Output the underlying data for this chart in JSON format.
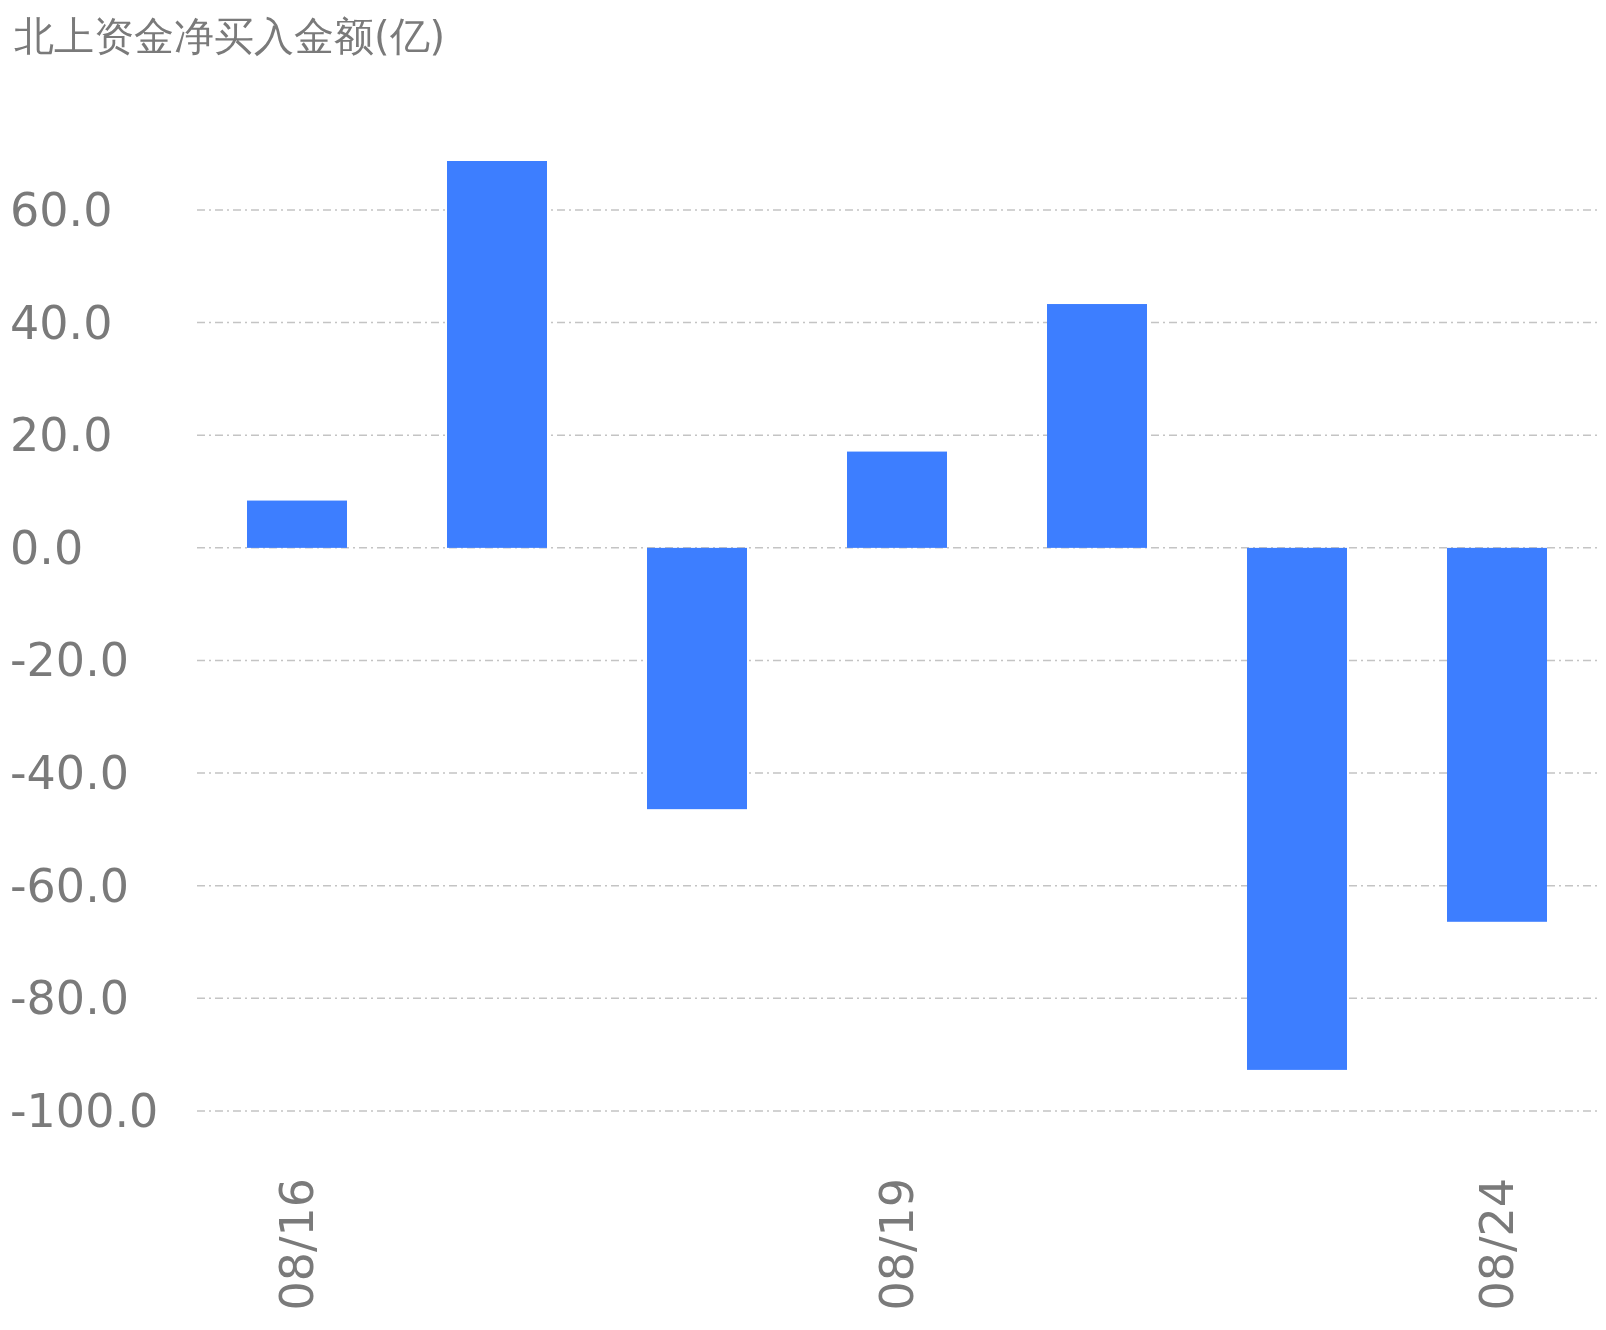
{
  "chart_data": {
    "type": "bar",
    "title": "北上资金净买入金额(亿)",
    "categories": [
      "08/16",
      null,
      null,
      "08/19",
      null,
      null,
      "08/24"
    ],
    "values": [
      8.4,
      68.7,
      -46.4,
      17.1,
      43.3,
      -92.7,
      -66.4
    ],
    "color": "#3d7eff",
    "ylim": [
      -100,
      68.7
    ],
    "yticks": [
      {
        "value": -100,
        "label": "-100.0"
      },
      {
        "value": -80,
        "label": "-80.0"
      },
      {
        "value": -60,
        "label": "-60.0"
      },
      {
        "value": -40,
        "label": "-40.0"
      },
      {
        "value": -20,
        "label": "-20.0"
      },
      {
        "value": 0,
        "label": "0.0"
      },
      {
        "value": 20,
        "label": "20.0"
      },
      {
        "value": 40,
        "label": "40.0"
      },
      {
        "value": 60,
        "label": "60.0"
      }
    ],
    "grid": "y"
  }
}
